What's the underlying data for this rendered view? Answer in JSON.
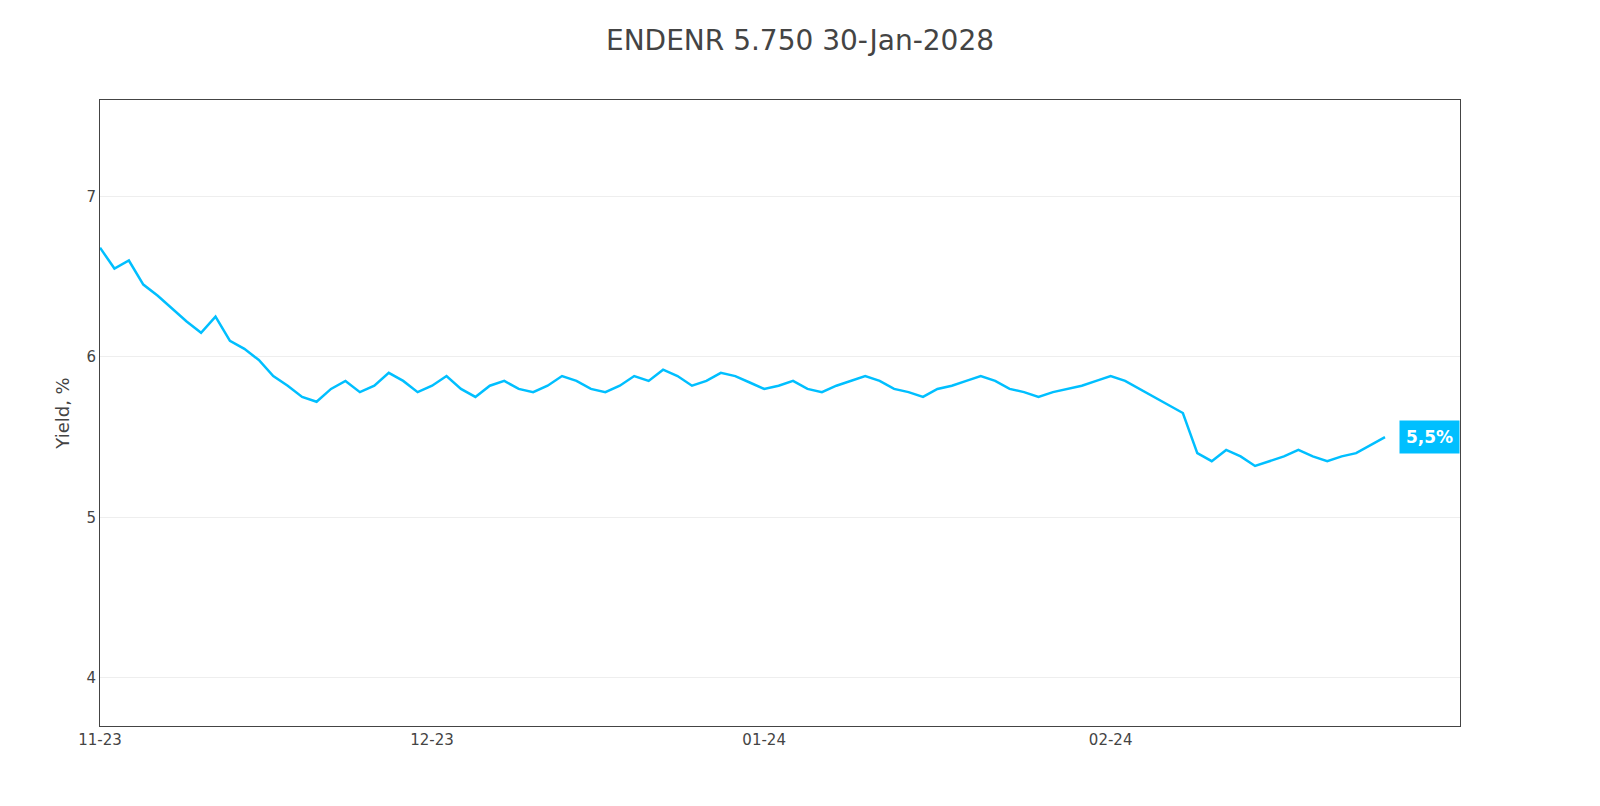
{
  "chart_data": {
    "type": "line",
    "title": "ENDENR 5.750 30-Jan-2028",
    "y_label": "Yield, %",
    "categories": [
      "11-23",
      null,
      null,
      null,
      null,
      null,
      null,
      null,
      null,
      null,
      null,
      null,
      null,
      null,
      null,
      null,
      null,
      null,
      null,
      null,
      null,
      null,
      null,
      "12-23",
      null,
      null,
      null,
      null,
      null,
      null,
      null,
      null,
      null,
      null,
      null,
      null,
      null,
      null,
      null,
      null,
      null,
      null,
      null,
      null,
      null,
      null,
      "01-24",
      null,
      null,
      null,
      null,
      null,
      null,
      null,
      null,
      null,
      null,
      null,
      null,
      null,
      null,
      null,
      null,
      null,
      null,
      null,
      null,
      null,
      null,
      null,
      "02-24",
      null,
      null,
      null,
      null,
      null,
      null,
      null,
      null,
      null,
      null,
      null,
      null,
      null,
      null,
      null,
      null,
      null,
      null,
      null
    ],
    "values": [
      6.68,
      6.55,
      6.6,
      6.45,
      6.38,
      6.3,
      6.22,
      6.15,
      6.25,
      6.1,
      6.05,
      5.98,
      5.88,
      5.82,
      5.75,
      5.72,
      5.8,
      5.85,
      5.78,
      5.82,
      5.9,
      5.85,
      5.78,
      5.82,
      5.88,
      5.8,
      5.75,
      5.82,
      5.85,
      5.8,
      5.78,
      5.82,
      5.88,
      5.85,
      5.8,
      5.78,
      5.82,
      5.88,
      5.85,
      5.92,
      5.88,
      5.82,
      5.85,
      5.9,
      5.88,
      5.84,
      5.8,
      5.82,
      5.85,
      5.8,
      5.78,
      5.82,
      5.85,
      5.88,
      5.85,
      5.8,
      5.78,
      5.75,
      5.8,
      5.82,
      5.85,
      5.88,
      5.85,
      5.8,
      5.78,
      5.75,
      5.78,
      5.8,
      5.82,
      5.85,
      5.88,
      5.85,
      5.8,
      5.75,
      5.7,
      5.65,
      5.4,
      5.35,
      5.42,
      5.38,
      5.32,
      5.35,
      5.38,
      5.42,
      5.38,
      5.35,
      5.38,
      5.4,
      5.45,
      5.5
    ],
    "color": "#00BFFF",
    "ylim": [
      3.7,
      7.6
    ],
    "yticks": [
      4,
      5,
      6,
      7
    ],
    "grid": true,
    "annotations": [
      {
        "text": "5,5%",
        "color": "#00BFFF"
      }
    ]
  }
}
